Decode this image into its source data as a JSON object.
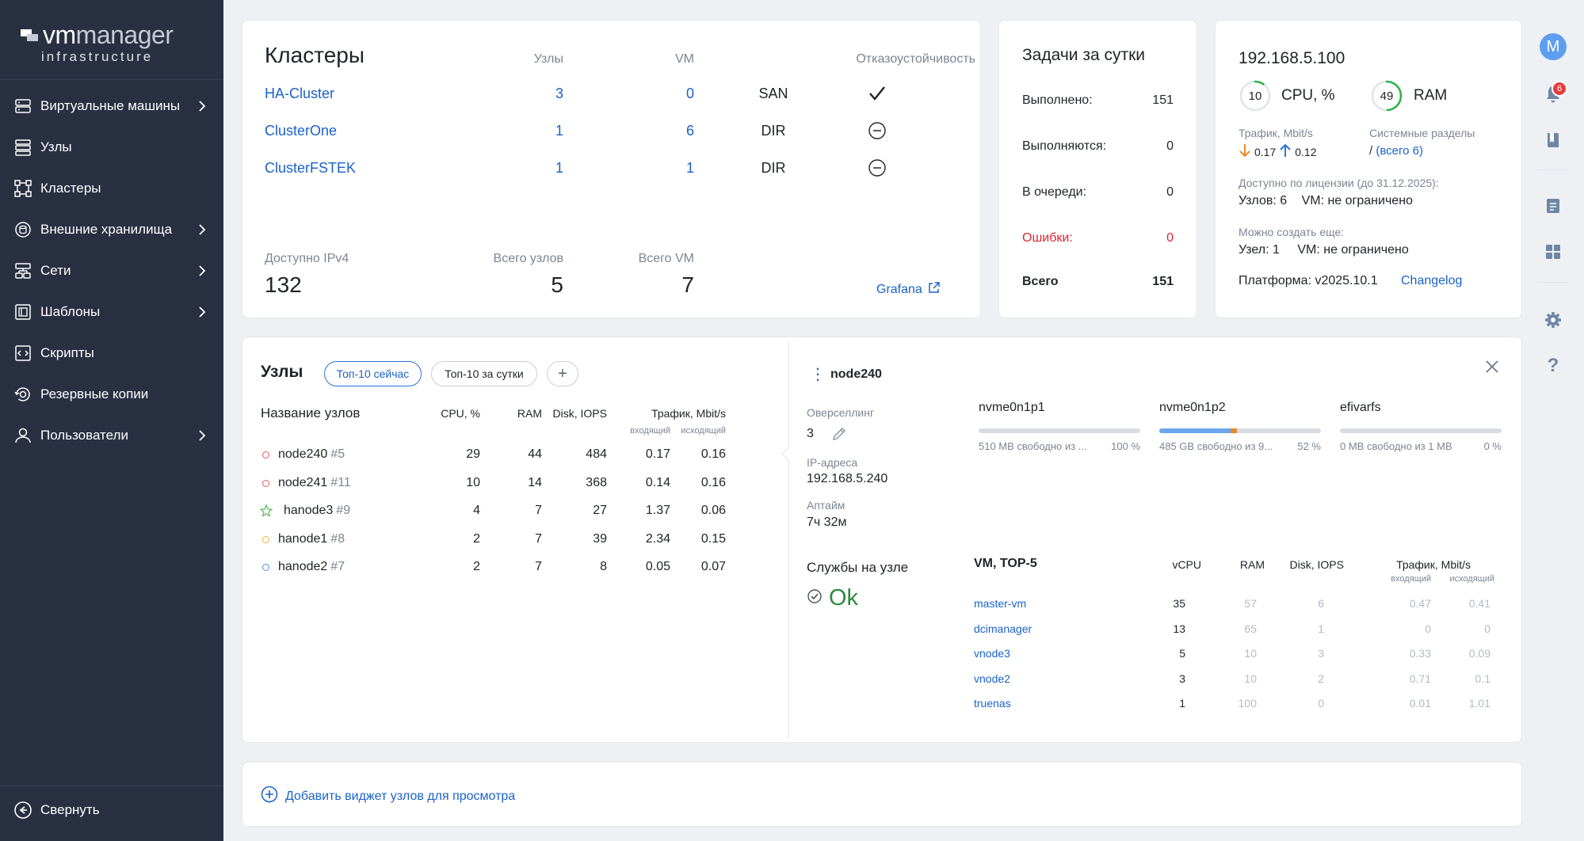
{
  "brand": {
    "name_vm": "vm",
    "name_manager": "manager",
    "subtitle": "infrastructure"
  },
  "sidebar": {
    "items": [
      {
        "label": "Виртуальные машины",
        "icon": "vm-icon",
        "has_children": true
      },
      {
        "label": "Узлы",
        "icon": "nodes-icon",
        "has_children": false
      },
      {
        "label": "Кластеры",
        "icon": "cluster-icon",
        "has_children": false
      },
      {
        "label": "Внешние хранилища",
        "icon": "storage-icon",
        "has_children": true
      },
      {
        "label": "Сети",
        "icon": "network-icon",
        "has_children": true
      },
      {
        "label": "Шаблоны",
        "icon": "template-icon",
        "has_children": true
      },
      {
        "label": "Скрипты",
        "icon": "script-icon",
        "has_children": false
      },
      {
        "label": "Резервные копии",
        "icon": "backup-icon",
        "has_children": false
      },
      {
        "label": "Пользователи",
        "icon": "user-icon",
        "has_children": true
      }
    ],
    "collapse_label": "Свернуть"
  },
  "clusters": {
    "title": "Кластеры",
    "col_nodes": "Узлы",
    "col_vm": "VM",
    "col_failover": "Отказоустойчивость",
    "rows": [
      {
        "name": "HA-Cluster",
        "nodes": "3",
        "vm": "0",
        "storage": "SAN",
        "failover": "check"
      },
      {
        "name": "ClusterOne",
        "nodes": "1",
        "vm": "6",
        "storage": "DIR",
        "failover": "minus"
      },
      {
        "name": "ClusterFSTEK",
        "nodes": "1",
        "vm": "1",
        "storage": "DIR",
        "failover": "minus"
      }
    ],
    "ipv4_label": "Доступно IPv4",
    "ipv4_value": "132",
    "total_nodes_label": "Всего узлов",
    "total_nodes_value": "5",
    "total_vm_label": "Всего VM",
    "total_vm_value": "7",
    "grafana_label": "Grafana"
  },
  "tasks": {
    "title": "Задачи за сутки",
    "rows": [
      {
        "label": "Выполнено:",
        "value": "151"
      },
      {
        "label": "Выполняются:",
        "value": "0"
      },
      {
        "label": "В очереди:",
        "value": "0"
      },
      {
        "label": "Ошибки:",
        "value": "0"
      }
    ],
    "total_label": "Всего",
    "total_value": "151",
    "error_color": "#e0262f"
  },
  "platform": {
    "ip": "192.168.5.100",
    "cpu_value": "10",
    "cpu_label": "CPU, %",
    "cpu_fraction": 0.1,
    "ram_value": "49",
    "ram_label": "RAM",
    "ram_fraction": 0.49,
    "traffic_label": "Трафик, Mbit/s",
    "traffic_in": "0.17",
    "traffic_out": "0.12",
    "partitions_label": "Системные разделы",
    "partitions_root": "/",
    "partitions_link": "(всего 6)",
    "license_label": "Доступно по лицензии (до 31.12.2025):",
    "license_nodes": "Узлов: 6",
    "license_vm": "VM: не ограничено",
    "can_create_label": "Можно создать еще:",
    "can_create_node": "Узел: 1",
    "can_create_vm": "VM: не ограничено",
    "platform_version": "Платформа: v2025.10.1",
    "changelog": "Changelog",
    "accent_green": "#2bb24c"
  },
  "nodes_widget": {
    "title": "Узлы",
    "tab_now": "Топ-10 сейчас",
    "tab_day": "Топ-10 за сутки",
    "add": "+",
    "col_name": "Название узлов",
    "col_cpu": "CPU, %",
    "col_ram": "RAM",
    "col_disk": "Disk, IOPS",
    "col_traffic": "Трафик, Mbit/s",
    "col_in": "входящий",
    "col_out": "исходящий",
    "rows": [
      {
        "name": "node240",
        "id": "#5",
        "cpu": "29",
        "ram": "44",
        "disk": "484",
        "in": "0.17",
        "out": "0.16",
        "marker": "circle",
        "color": "#e55a5a"
      },
      {
        "name": "node241",
        "id": "#11",
        "cpu": "10",
        "ram": "14",
        "disk": "368",
        "in": "0.14",
        "out": "0.16",
        "marker": "circle",
        "color": "#e55a5a"
      },
      {
        "name": "hanode3",
        "id": "#9",
        "cpu": "4",
        "ram": "7",
        "disk": "27",
        "in": "1.37",
        "out": "0.06",
        "marker": "star",
        "color": "#5cb85c"
      },
      {
        "name": "hanode1",
        "id": "#8",
        "cpu": "2",
        "ram": "7",
        "disk": "39",
        "in": "2.34",
        "out": "0.15",
        "marker": "circle",
        "color": "#e8b630"
      },
      {
        "name": "hanode2",
        "id": "#7",
        "cpu": "2",
        "ram": "7",
        "disk": "8",
        "in": "0.05",
        "out": "0.07",
        "marker": "circle",
        "color": "#4a90e2"
      }
    ]
  },
  "node_detail": {
    "name": "node240",
    "overselling_label": "Оверселлинг",
    "overselling_value": "3",
    "ip_label": "IP-адреса",
    "ip_value": "192.168.5.240",
    "uptime_label": "Аптайм",
    "uptime_value": "7ч 32м",
    "services_label": "Службы на узле",
    "services_status": "Ok",
    "disks": [
      {
        "name": "nvme0n1p1",
        "desc": "510 MB свободно из ...",
        "pct": "100 %",
        "fill": 0.0
      },
      {
        "name": "nvme0n1p2",
        "desc": "485 GB свободно из 9...",
        "pct": "52 %",
        "fill": 0.48
      },
      {
        "name": "efivarfs",
        "desc": "0 MB свободно из 1 MB",
        "pct": "0 %",
        "fill": 0.0
      }
    ],
    "vm_title": "VM, TOP-5",
    "vm_col_cpu": "vCPU",
    "vm_col_ram": "RAM",
    "vm_col_disk": "Disk, IOPS",
    "vm_col_traffic": "Трафик, Mbit/s",
    "vm_col_in": "входящий",
    "vm_col_out": "исходящий",
    "vms": [
      {
        "name": "master-vm",
        "cpu": "35",
        "ram": "57",
        "disk": "6",
        "in": "0.47",
        "out": "0.41"
      },
      {
        "name": "dcimanager",
        "cpu": "13",
        "ram": "65",
        "disk": "1",
        "in": "0",
        "out": "0"
      },
      {
        "name": "vnode3",
        "cpu": "5",
        "ram": "10",
        "disk": "3",
        "in": "0.33",
        "out": "0.09"
      },
      {
        "name": "vnode2",
        "cpu": "3",
        "ram": "10",
        "disk": "2",
        "in": "0.71",
        "out": "0.1"
      },
      {
        "name": "truenas",
        "cpu": "1",
        "ram": "100",
        "disk": "0",
        "in": "0.01",
        "out": "1.01"
      }
    ]
  },
  "add_widget": {
    "label": "Добавить виджет узлов для просмотра"
  },
  "rail": {
    "avatar_letter": "M",
    "notifications": "6"
  }
}
